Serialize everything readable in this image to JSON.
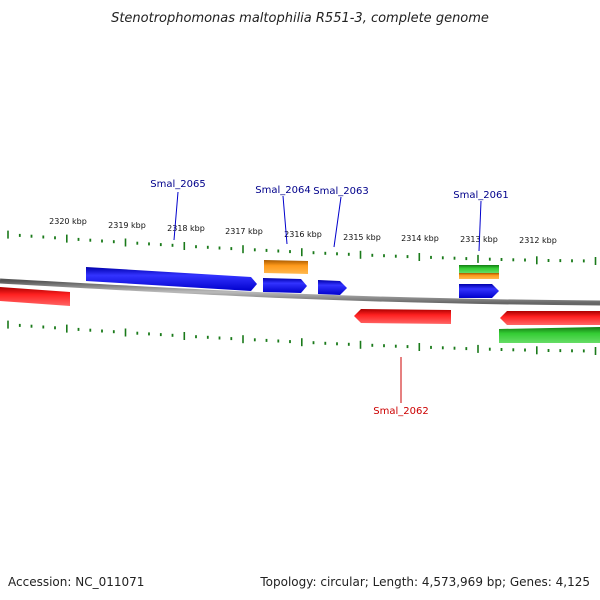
{
  "title": "Stenotrophomonas maltophilia R551-3, complete genome",
  "footer": {
    "accession": "Accession: NC_011071",
    "summary": "Topology: circular; Length: 4,573,969 bp; Genes: 4,125"
  },
  "tick_labels": [
    "2320 kbp",
    "2319 kbp",
    "2318 kbp",
    "2317 kbp",
    "2316 kbp",
    "2315 kbp",
    "2314 kbp",
    "2313 kbp",
    "2312 kbp"
  ],
  "gene_labels": [
    {
      "id": "smal-2065",
      "text": "Smal_2065",
      "color": "#00008b"
    },
    {
      "id": "smal-2064",
      "text": "Smal_2064",
      "color": "#00008b"
    },
    {
      "id": "smal-2063",
      "text": "Smal_2063",
      "color": "#00008b"
    },
    {
      "id": "smal-2061",
      "text": "Smal_2061",
      "color": "#00008b"
    },
    {
      "id": "smal-2062",
      "text": "Smal_2062",
      "color": "#cc0000"
    }
  ],
  "feature_colors": {
    "forward_cds": "#0000ee",
    "reverse_cds": "#ee0000",
    "rna": "#ff8c00",
    "other": "#22aa22",
    "backbone": "#888888",
    "ticks": "#1a7a1a"
  }
}
